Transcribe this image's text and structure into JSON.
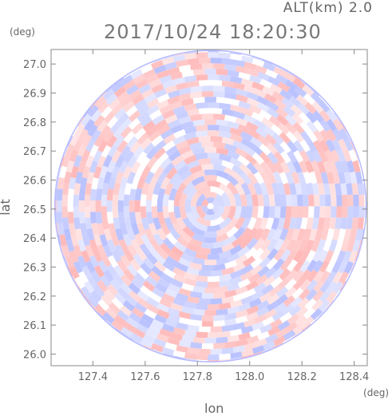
{
  "header": {
    "altitude": "ALT(km) 2.0",
    "timestamp": "2017/10/24 18:20:30"
  },
  "chart_data": {
    "type": "heatmap",
    "title": "2017/10/24 18:20:30",
    "subtitle": "ALT(km) 2.0",
    "xlabel": "lon",
    "ylabel": "lat",
    "x_unit": "(deg)",
    "y_unit": "(deg)",
    "xlim": [
      127.24,
      128.45
    ],
    "ylim": [
      25.96,
      27.05
    ],
    "x_ticks": [
      127.4,
      127.6,
      127.8,
      128.0,
      128.2,
      128.4
    ],
    "x_tick_labels": [
      "127.4",
      "127.6",
      "127.8",
      "128.0",
      "128.2",
      "128.4"
    ],
    "y_ticks": [
      26.0,
      26.1,
      26.2,
      26.3,
      26.4,
      26.5,
      26.6,
      26.7,
      26.8,
      26.9,
      27.0
    ],
    "y_tick_labels": [
      "26.0",
      "26.1",
      "26.2",
      "26.3",
      "26.4",
      "26.5",
      "26.6",
      "26.7",
      "26.8",
      "26.9",
      "27.0"
    ],
    "radar_center": [
      127.85,
      26.51
    ],
    "colors": {
      "positive": "#ff9a9a",
      "negative": "#9aa6ff",
      "neutral": "#ffffff",
      "axis": "#888888"
    }
  }
}
